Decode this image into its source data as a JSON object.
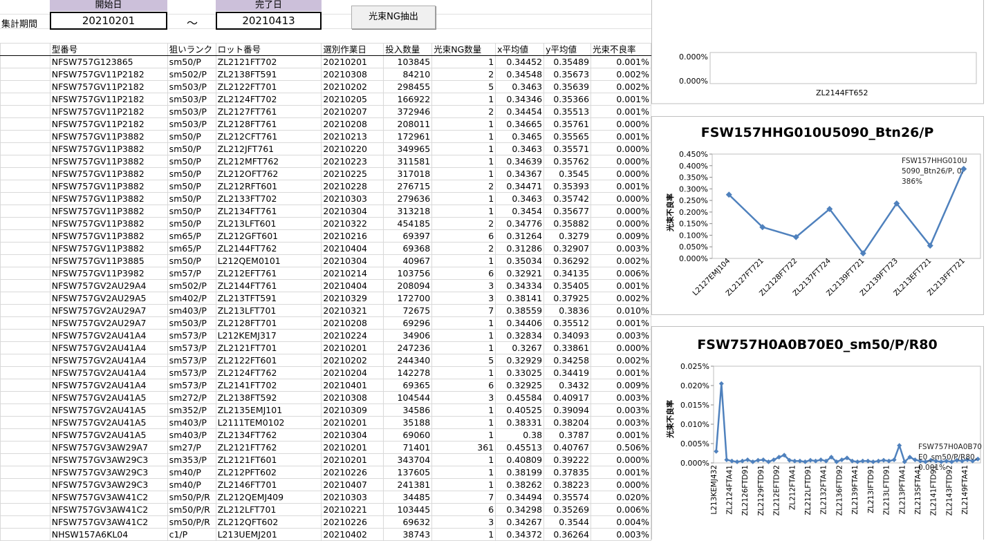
{
  "header": {
    "period_label": "集計期間",
    "start_label": "開始日",
    "start_value": "20210201",
    "tilde": "～",
    "end_label": "完了日",
    "end_value": "20210413",
    "button": "光束NG抽出"
  },
  "table": {
    "columns": [
      "型番号",
      "狙いランク",
      "ロット番号",
      "選別作業日",
      "投入数量",
      "光束NG数量",
      "x平均値",
      "y平均値",
      "光束不良率"
    ],
    "rows": [
      [
        "NFSW757G123865",
        "sm50/P",
        "ZL2121FT702",
        "20210201",
        "103845",
        "1",
        "0.34452",
        "0.35489",
        "0.001%"
      ],
      [
        "NFSW757GV11P2182",
        "sm502/P",
        "ZL2138FT591",
        "20210308",
        "84210",
        "2",
        "0.34548",
        "0.35673",
        "0.002%"
      ],
      [
        "NFSW757GV11P2182",
        "sm503/P",
        "ZL2122FT701",
        "20210202",
        "298455",
        "5",
        "0.3463",
        "0.35639",
        "0.002%"
      ],
      [
        "NFSW757GV11P2182",
        "sm503/P",
        "ZL2124FT702",
        "20210205",
        "166922",
        "1",
        "0.34346",
        "0.35366",
        "0.001%"
      ],
      [
        "NFSW757GV11P2182",
        "sm503/P",
        "ZL2127FT761",
        "20210207",
        "372946",
        "2",
        "0.34454",
        "0.35513",
        "0.001%"
      ],
      [
        "NFSW757GV11P2182",
        "sm503/P",
        "ZL2128FT761",
        "20210208",
        "208011",
        "1",
        "0.34665",
        "0.35761",
        "0.000%"
      ],
      [
        "NFSW757GV11P3882",
        "sm50/P",
        "ZL212CFT761",
        "20210213",
        "172961",
        "1",
        "0.3465",
        "0.35565",
        "0.001%"
      ],
      [
        "NFSW757GV11P3882",
        "sm50/P",
        "ZL212JFT761",
        "20210220",
        "349965",
        "1",
        "0.3463",
        "0.35571",
        "0.000%"
      ],
      [
        "NFSW757GV11P3882",
        "sm50/P",
        "ZL212MFT762",
        "20210223",
        "311581",
        "1",
        "0.34639",
        "0.35762",
        "0.000%"
      ],
      [
        "NFSW757GV11P3882",
        "sm50/P",
        "ZL212OFT762",
        "20210225",
        "317018",
        "1",
        "0.34367",
        "0.3545",
        "0.000%"
      ],
      [
        "NFSW757GV11P3882",
        "sm50/P",
        "ZL212RFT601",
        "20210228",
        "276715",
        "2",
        "0.34471",
        "0.35393",
        "0.001%"
      ],
      [
        "NFSW757GV11P3882",
        "sm50/P",
        "ZL2133FT702",
        "20210303",
        "279636",
        "1",
        "0.3463",
        "0.35742",
        "0.000%"
      ],
      [
        "NFSW757GV11P3882",
        "sm50/P",
        "ZL2134FT761",
        "20210304",
        "313218",
        "1",
        "0.3454",
        "0.35677",
        "0.000%"
      ],
      [
        "NFSW757GV11P3882",
        "sm50/P",
        "ZL213LFT601",
        "20210322",
        "454185",
        "2",
        "0.34776",
        "0.35882",
        "0.000%"
      ],
      [
        "NFSW757GV11P3882",
        "sm65/P",
        "ZL212GFT601",
        "20210216",
        "69397",
        "6",
        "0.31264",
        "0.3279",
        "0.009%"
      ],
      [
        "NFSW757GV11P3882",
        "sm65/P",
        "ZL2144FT762",
        "20210404",
        "69368",
        "2",
        "0.31286",
        "0.32907",
        "0.003%"
      ],
      [
        "NFSW757GV11P3885",
        "sm50/P",
        "L212QEM0101",
        "20210304",
        "40967",
        "1",
        "0.35034",
        "0.36292",
        "0.002%"
      ],
      [
        "NFSW757GV11P3982",
        "sm57/P",
        "ZL212EFT761",
        "20210214",
        "103756",
        "6",
        "0.32921",
        "0.34135",
        "0.006%"
      ],
      [
        "NFSW757GV2AU29A4",
        "sm502/P",
        "ZL2144FT761",
        "20210404",
        "208094",
        "3",
        "0.34334",
        "0.35405",
        "0.001%"
      ],
      [
        "NFSW757GV2AU29A5",
        "sm402/P",
        "ZL213TFT591",
        "20210329",
        "172700",
        "3",
        "0.38141",
        "0.37925",
        "0.002%"
      ],
      [
        "NFSW757GV2AU29A7",
        "sm403/P",
        "ZL213LFT701",
        "20210321",
        "72675",
        "7",
        "0.38559",
        "0.3836",
        "0.010%"
      ],
      [
        "NFSW757GV2AU29A7",
        "sm503/P",
        "ZL2128FT701",
        "20210208",
        "69296",
        "1",
        "0.34406",
        "0.35512",
        "0.001%"
      ],
      [
        "NFSW757GV2AU41A4",
        "sm573/P",
        "L212KEMJ317",
        "20210224",
        "34906",
        "1",
        "0.32834",
        "0.34093",
        "0.003%"
      ],
      [
        "NFSW757GV2AU41A4",
        "sm573/P",
        "ZL2121FT701",
        "20210201",
        "247236",
        "1",
        "0.3267",
        "0.33861",
        "0.000%"
      ],
      [
        "NFSW757GV2AU41A4",
        "sm573/P",
        "ZL2122FT601",
        "20210202",
        "244340",
        "5",
        "0.32929",
        "0.34258",
        "0.002%"
      ],
      [
        "NFSW757GV2AU41A4",
        "sm573/P",
        "ZL2124FT762",
        "20210204",
        "142278",
        "1",
        "0.33025",
        "0.34419",
        "0.001%"
      ],
      [
        "NFSW757GV2AU41A4",
        "sm573/P",
        "ZL2141FT702",
        "20210401",
        "69365",
        "6",
        "0.32925",
        "0.3432",
        "0.009%"
      ],
      [
        "NFSW757GV2AU41A5",
        "sm272/P",
        "ZL2138FT592",
        "20210308",
        "104544",
        "3",
        "0.45584",
        "0.40917",
        "0.003%"
      ],
      [
        "NFSW757GV2AU41A5",
        "sm352/P",
        "ZL2135EMJ101",
        "20210309",
        "34586",
        "1",
        "0.40525",
        "0.39094",
        "0.003%"
      ],
      [
        "NFSW757GV2AU41A5",
        "sm403/P",
        "L2111TEM0102",
        "20210201",
        "35188",
        "1",
        "0.38331",
        "0.38204",
        "0.003%"
      ],
      [
        "NFSW757GV2AU41A5",
        "sm403/P",
        "ZL2134FT762",
        "20210304",
        "69060",
        "1",
        "0.38",
        "0.3787",
        "0.001%"
      ],
      [
        "NFSW757GV3AW29A7",
        "sm27/P",
        "ZL2121FT762",
        "20210201",
        "71401",
        "361",
        "0.45513",
        "0.40767",
        "0.506%"
      ],
      [
        "NFSW757GV3AW29C3",
        "sm353/P",
        "ZL2121FT601",
        "20210201",
        "343704",
        "1",
        "0.40809",
        "0.39222",
        "0.000%"
      ],
      [
        "NFSW757GV3AW29C3",
        "sm40/P",
        "ZL212PFT602",
        "20210226",
        "137605",
        "1",
        "0.38199",
        "0.37835",
        "0.001%"
      ],
      [
        "NFSW757GV3AW29C3",
        "sm40/P",
        "ZL2146FT701",
        "20210407",
        "241381",
        "1",
        "0.38262",
        "0.38223",
        "0.000%"
      ],
      [
        "NFSW757GV3AW41C2",
        "sm50/P/R",
        "ZL212QEMJ409",
        "20210303",
        "34485",
        "7",
        "0.34494",
        "0.35574",
        "0.020%"
      ],
      [
        "NFSW757GV3AW41C2",
        "sm50/P/R",
        "ZL212LFT701",
        "20210221",
        "103445",
        "6",
        "0.34298",
        "0.35269",
        "0.006%"
      ],
      [
        "NFSW757GV3AW41C2",
        "sm50/P/R",
        "ZL212QFT602",
        "20210226",
        "69632",
        "3",
        "0.34267",
        "0.3544",
        "0.004%"
      ],
      [
        "NHSW157A6KL04",
        "c1/P",
        "L213UEMJ201",
        "20210402",
        "38743",
        "1",
        "0.34372",
        "0.36264",
        "0.003%"
      ]
    ]
  },
  "partial_chart": {
    "tick_labels": [
      "0.000%",
      "0.000%"
    ],
    "category": "ZL2144FT652"
  },
  "chart_data": [
    {
      "type": "line",
      "title": "FSW157HHG010U5090_Btn26/P",
      "y_label": "光束不良率",
      "color": "#4f81bd",
      "categories": [
        "L2127EMJ104",
        "ZL2127FT721",
        "ZL2128FT722",
        "ZL2137FT724",
        "ZL2139FT721",
        "ZL2139FT723",
        "ZL213EFT721",
        "ZL213FFT721"
      ],
      "values": [
        0.275,
        0.135,
        0.092,
        0.213,
        0.022,
        0.237,
        0.055,
        0.386
      ],
      "ylim": [
        0,
        0.45
      ],
      "yticks": [
        {
          "value": 0,
          "label": "0.000%"
        },
        {
          "value": 0.05,
          "label": "0.050%"
        },
        {
          "value": 0.1,
          "label": "0.100%"
        },
        {
          "value": 0.15,
          "label": "0.150%"
        },
        {
          "value": 0.2,
          "label": "0.200%"
        },
        {
          "value": 0.25,
          "label": "0.250%"
        },
        {
          "value": 0.3,
          "label": "0.300%"
        },
        {
          "value": 0.35,
          "label": "0.350%"
        },
        {
          "value": 0.4,
          "label": "0.400%"
        },
        {
          "value": 0.45,
          "label": "0.450%"
        }
      ],
      "annotation": "FSW157HHG010U5090_Btn26/P, 0.386%"
    },
    {
      "type": "line",
      "title": "FSW757H0A0B70E0_sm50/P/R80",
      "y_label": "光束不良率",
      "color": "#4f81bd",
      "categories": [
        "L213KEMJ432",
        null,
        null,
        "ZL2124FTA41",
        null,
        null,
        "ZL2126FTD91",
        null,
        null,
        "ZL2129FTD91",
        null,
        null,
        "ZL212EFTD92",
        null,
        null,
        "ZL212FTA41",
        null,
        null,
        "ZL212LFTD91",
        null,
        null,
        "ZL2132FTA41",
        null,
        null,
        "ZL2136FTD92",
        null,
        null,
        "ZL2139FTA41",
        null,
        null,
        "ZL213IFTD91",
        null,
        null,
        "ZL213LFTD91",
        null,
        null,
        "ZL213PFTA41",
        null,
        null,
        "ZL213SFTA41",
        null,
        null,
        "ZL2141FTD91",
        null,
        null,
        "ZL2143FTD92",
        null,
        null,
        "ZL2149FTA41",
        null,
        null
      ],
      "values": [
        0.003,
        0.0205,
        0.0008,
        0.0005,
        0.0003,
        0.0005,
        0.0008,
        0.0003,
        0.0007,
        0.0008,
        0.0003,
        0.0008,
        0.0015,
        0.002,
        0.0007,
        0.0005,
        0.0005,
        0.0003,
        0.0007,
        0.0005,
        0.0008,
        0.0005,
        0.0015,
        0.0003,
        0.0008,
        0.0013,
        0.0005,
        0.0003,
        0.0005,
        0.0005,
        0.0003,
        0.0005,
        0.0007,
        0.0005,
        0.0008,
        0.0045,
        0.0003,
        0.0015,
        0.0008,
        0.0005,
        0.0003,
        0.0007,
        0.0005,
        0.0003,
        0.0005,
        0.0003,
        0.0007,
        0.0005,
        0.0008,
        0.0005,
        0.001
      ],
      "ylim": [
        0,
        0.025
      ],
      "yticks": [
        {
          "value": 0,
          "label": "0.000%"
        },
        {
          "value": 0.005,
          "label": "0.005%"
        },
        {
          "value": 0.01,
          "label": "0.010%"
        },
        {
          "value": 0.015,
          "label": "0.015%"
        },
        {
          "value": 0.02,
          "label": "0.020%"
        },
        {
          "value": 0.025,
          "label": "0.025%"
        }
      ],
      "annotation": "FSW757H0A0B70E0_sm50/P/R80, 0.001%"
    }
  ]
}
